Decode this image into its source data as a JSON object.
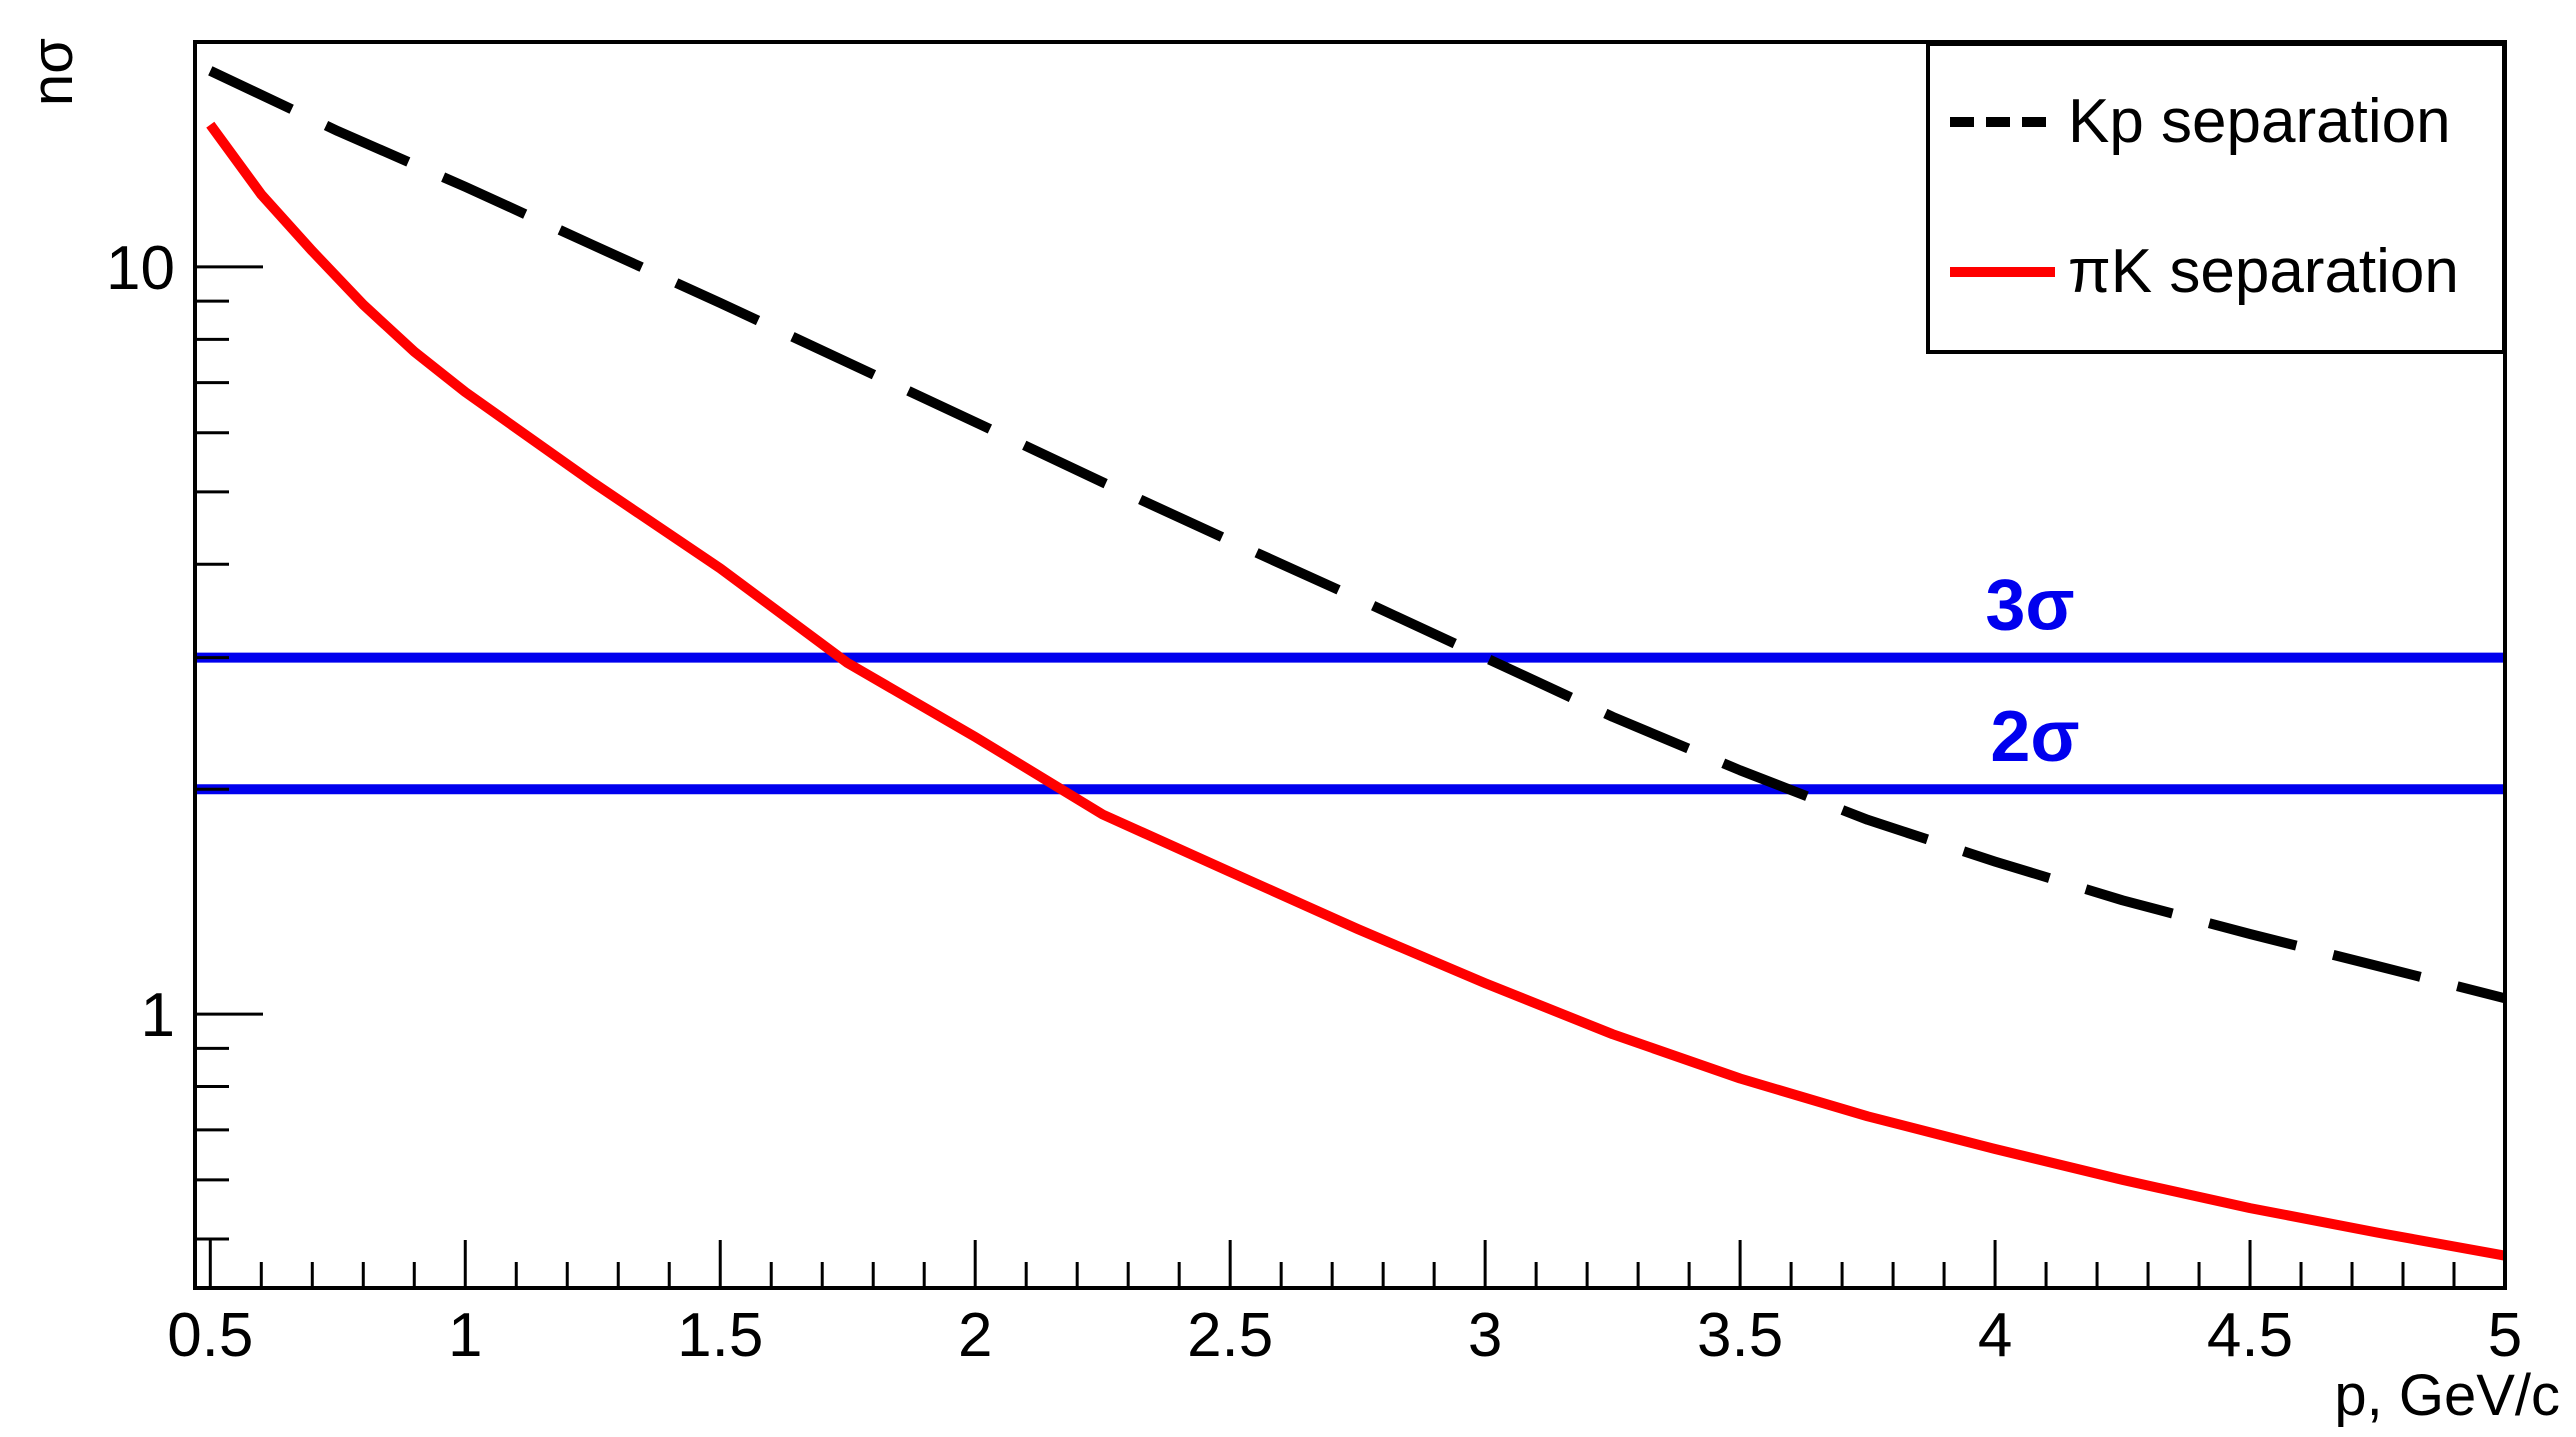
{
  "chart_data": {
    "type": "line",
    "title": "",
    "xlabel": "p, GeV/c",
    "ylabel": "nσ",
    "xlim": [
      0.47,
      5.0
    ],
    "ylim": [
      0.43,
      20
    ],
    "yscale": "log",
    "grid": false,
    "legend_position": "top-right",
    "x_ticks": [
      {
        "value": 0.5,
        "label": "0.5"
      },
      {
        "value": 1,
        "label": "1"
      },
      {
        "value": 1.5,
        "label": "1.5"
      },
      {
        "value": 2,
        "label": "2"
      },
      {
        "value": 2.5,
        "label": "2.5"
      },
      {
        "value": 3,
        "label": "3"
      },
      {
        "value": 3.5,
        "label": "3.5"
      },
      {
        "value": 4,
        "label": "4"
      },
      {
        "value": 4.5,
        "label": "4.5"
      },
      {
        "value": 5,
        "label": "5"
      }
    ],
    "y_ticks": [
      {
        "value": 1,
        "label": "1"
      },
      {
        "value": 10,
        "label": "10"
      }
    ],
    "series": [
      {
        "name": "Kp separation",
        "color": "#000000",
        "dash": true,
        "x": [
          0.5,
          0.75,
          1.0,
          1.25,
          1.5,
          1.75,
          2.0,
          2.25,
          2.5,
          2.75,
          3.0,
          3.25,
          3.5,
          3.75,
          4.0,
          4.25,
          4.5,
          4.75,
          5.0
        ],
        "y": [
          18.3,
          15.2,
          12.8,
          10.7,
          8.95,
          7.45,
          6.2,
          5.15,
          4.3,
          3.6,
          3.0,
          2.5,
          2.12,
          1.82,
          1.6,
          1.42,
          1.28,
          1.16,
          1.05
        ]
      },
      {
        "name": "πK separation",
        "color": "#ff0000",
        "dash": false,
        "x": [
          0.5,
          0.6,
          0.7,
          0.8,
          0.9,
          1.0,
          1.25,
          1.5,
          1.75,
          2.0,
          2.25,
          2.5,
          2.75,
          3.0,
          3.25,
          3.5,
          3.75,
          4.0,
          4.25,
          4.5,
          4.75,
          5.0
        ],
        "y": [
          15.5,
          12.5,
          10.5,
          8.9,
          7.7,
          6.8,
          5.15,
          3.95,
          2.95,
          2.35,
          1.85,
          1.55,
          1.3,
          1.1,
          0.94,
          0.82,
          0.73,
          0.66,
          0.6,
          0.55,
          0.51,
          0.475
        ]
      }
    ],
    "reference_lines": [
      {
        "label": "3σ",
        "y": 3.0,
        "color": "#0000ee"
      },
      {
        "label": "2σ",
        "y": 2.0,
        "color": "#0000ee"
      }
    ]
  }
}
